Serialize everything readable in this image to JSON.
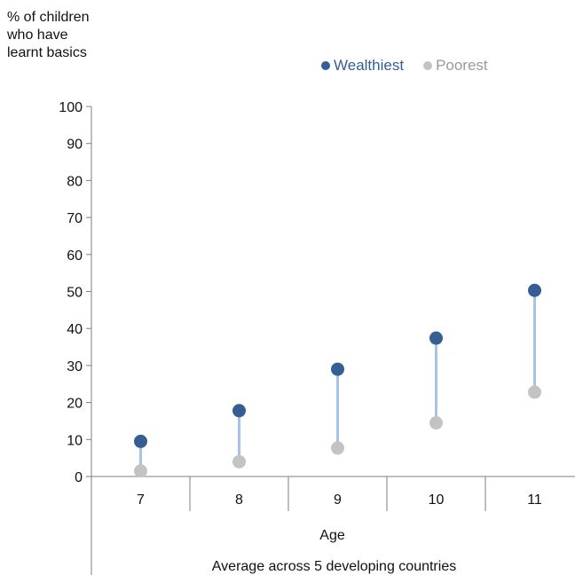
{
  "chart_data": {
    "type": "scatter",
    "ylabel": "% of children\nwho have\nlearnt basics",
    "xlabel": "Age",
    "subtitle": "Average across 5 developing countries",
    "categories": [
      "7",
      "8",
      "9",
      "10",
      "11"
    ],
    "ylim": [
      0,
      100
    ],
    "yticks": [
      0,
      10,
      20,
      30,
      40,
      50,
      60,
      70,
      80,
      90,
      100
    ],
    "grid": false,
    "legend_position": "top-right",
    "series": [
      {
        "name": "Wealthiest",
        "color": "#345e94",
        "values": [
          9.5,
          17.8,
          29,
          37.4,
          50.3
        ]
      },
      {
        "name": "Poorest",
        "color": "#c3c3c3",
        "values": [
          1.5,
          4,
          7.7,
          14.5,
          22.8
        ]
      }
    ],
    "connector_color": "#a8c4e4"
  }
}
